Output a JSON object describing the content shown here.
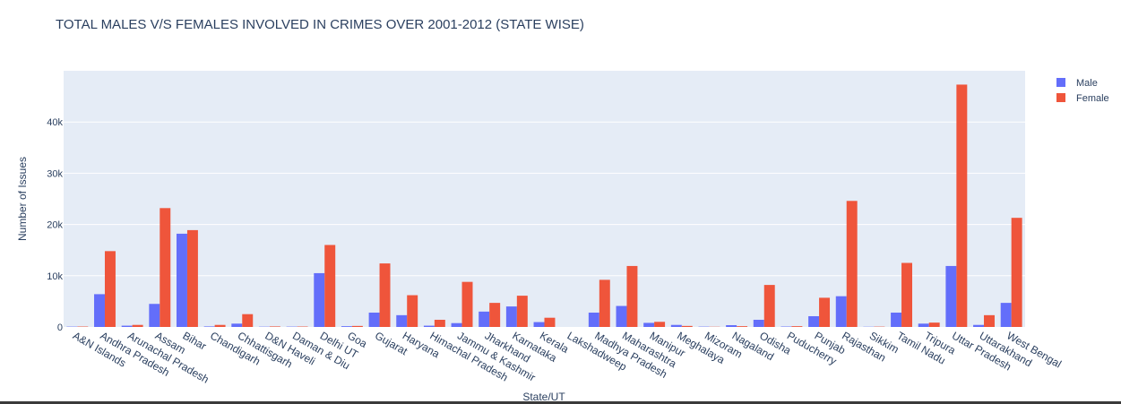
{
  "chart_data": {
    "type": "bar",
    "title": "TOTAL MALES V/S FEMALES INVOLVED IN CRIMES OVER 2001-2012 (STATE WISE)",
    "xlabel": "State/UT",
    "ylabel": "Number of Issues",
    "ylim": [
      0,
      50000
    ],
    "yticks": [
      0,
      10000,
      20000,
      30000,
      40000
    ],
    "ytick_labels": [
      "0",
      "10k",
      "20k",
      "30k",
      "40k"
    ],
    "grid": true,
    "legend": "top-right",
    "categories": [
      "A&N Islands",
      "Andhra Pradesh",
      "Arunachal Pradesh",
      "Assam",
      "Bihar",
      "Chandigarh",
      "Chhattisgarh",
      "D&N Haveli",
      "Daman & Diu",
      "Delhi UT",
      "Goa",
      "Gujarat",
      "Haryana",
      "Himachal Pradesh",
      "Jammu & Kashmir",
      "Jharkhand",
      "Karnataka",
      "Kerala",
      "Lakshadweep",
      "Madhya Pradesh",
      "Maharashtra",
      "Manipur",
      "Meghalaya",
      "Mizoram",
      "Nagaland",
      "Odisha",
      "Puducherry",
      "Punjab",
      "Rajasthan",
      "Sikkim",
      "Tamil Nadu",
      "Tripura",
      "Uttar Pradesh",
      "Uttarakhand",
      "West Bengal"
    ],
    "series": [
      {
        "name": "Male",
        "color": "#636efa",
        "values": [
          60,
          6400,
          250,
          4500,
          18200,
          100,
          650,
          50,
          60,
          10500,
          150,
          2800,
          2300,
          250,
          750,
          3000,
          4000,
          950,
          0,
          2800,
          4100,
          800,
          400,
          60,
          350,
          1400,
          80,
          2100,
          6000,
          40,
          2800,
          650,
          11900,
          400,
          4700
        ]
      },
      {
        "name": "Female",
        "color": "#ef553b",
        "values": [
          80,
          14800,
          400,
          23200,
          18900,
          400,
          2500,
          100,
          80,
          16000,
          200,
          12400,
          6200,
          1400,
          8800,
          4700,
          6100,
          1800,
          0,
          9200,
          11900,
          1000,
          200,
          40,
          150,
          8200,
          150,
          5700,
          24600,
          60,
          12500,
          850,
          47300,
          2300,
          21300
        ]
      }
    ]
  }
}
